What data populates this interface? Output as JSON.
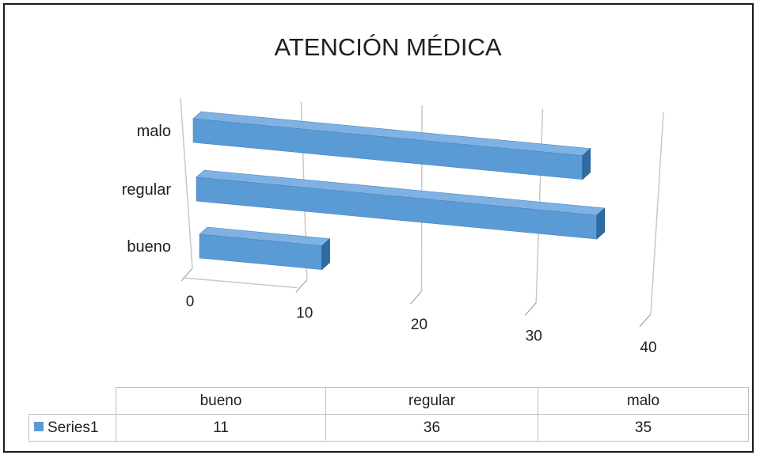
{
  "chart_data": {
    "type": "bar",
    "orientation": "horizontal",
    "style": "3d",
    "title": "ATENCIÓN MÉDICA",
    "categories": [
      "bueno",
      "regular",
      "malo"
    ],
    "series": [
      {
        "name": "Series1",
        "values": [
          11,
          36,
          35
        ]
      }
    ],
    "xticks": [
      "0",
      "10",
      "20",
      "30",
      "40"
    ],
    "xlim": [
      0,
      40
    ],
    "grid": true,
    "colors": {
      "bar_front": "#5b9bd5",
      "bar_top": "#7fb2e3",
      "bar_side": "#2e6aa3"
    },
    "data_table": true
  }
}
